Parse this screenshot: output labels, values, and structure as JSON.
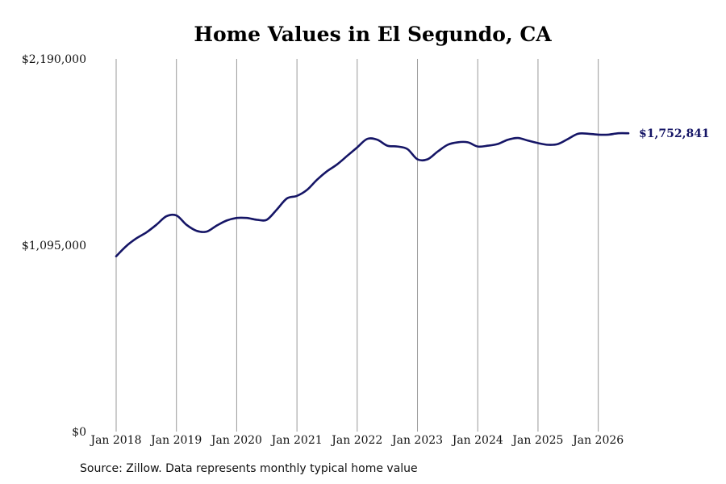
{
  "chart_data": {
    "type": "line",
    "title": "Home Values in El Segundo, CA",
    "xlabel": "",
    "ylabel": "",
    "x_tick_labels": [
      "Jan 2018",
      "Jan 2019",
      "Jan 2020",
      "Jan 2021",
      "Jan 2022",
      "Jan 2023",
      "Jan 2024",
      "Jan 2025",
      "Jan 2026"
    ],
    "y_tick_labels": [
      "$2,190,000",
      "$1,095,000",
      "$0"
    ],
    "y_ticks": [
      2190000,
      1095000,
      0
    ],
    "ylim": [
      0,
      2190000
    ],
    "xlim": [
      "2018-01",
      "2026-07"
    ],
    "grid": "vertical gridlines at each year",
    "end_label": "$1,752,841",
    "series": [
      {
        "color": "#151566",
        "x": [
          "2018-01",
          "2018-03",
          "2018-05",
          "2018-07",
          "2018-09",
          "2018-11",
          "2019-01",
          "2019-03",
          "2019-05",
          "2019-07",
          "2019-09",
          "2019-11",
          "2020-01",
          "2020-03",
          "2020-05",
          "2020-07",
          "2020-09",
          "2020-11",
          "2021-01",
          "2021-03",
          "2021-05",
          "2021-07",
          "2021-09",
          "2021-11",
          "2022-01",
          "2022-03",
          "2022-05",
          "2022-07",
          "2022-09",
          "2022-11",
          "2023-01",
          "2023-03",
          "2023-05",
          "2023-07",
          "2023-09",
          "2023-11",
          "2024-01",
          "2024-03",
          "2024-05",
          "2024-07",
          "2024-09",
          "2024-11",
          "2025-01",
          "2025-03",
          "2025-05",
          "2025-07",
          "2025-09",
          "2025-11",
          "2026-01",
          "2026-03",
          "2026-05",
          "2026-07"
        ],
        "values": [
          1030000,
          1090000,
          1135000,
          1170000,
          1215000,
          1265000,
          1270000,
          1215000,
          1180000,
          1175000,
          1210000,
          1240000,
          1255000,
          1255000,
          1245000,
          1245000,
          1305000,
          1370000,
          1385000,
          1420000,
          1480000,
          1530000,
          1570000,
          1620000,
          1670000,
          1720000,
          1715000,
          1680000,
          1675000,
          1660000,
          1600000,
          1600000,
          1645000,
          1685000,
          1700000,
          1700000,
          1675000,
          1680000,
          1690000,
          1715000,
          1725000,
          1710000,
          1695000,
          1685000,
          1690000,
          1720000,
          1750000,
          1750000,
          1745000,
          1745000,
          1752841,
          1752841
        ]
      }
    ]
  },
  "source_note": "Source: Zillow. Data represents monthly typical home value"
}
